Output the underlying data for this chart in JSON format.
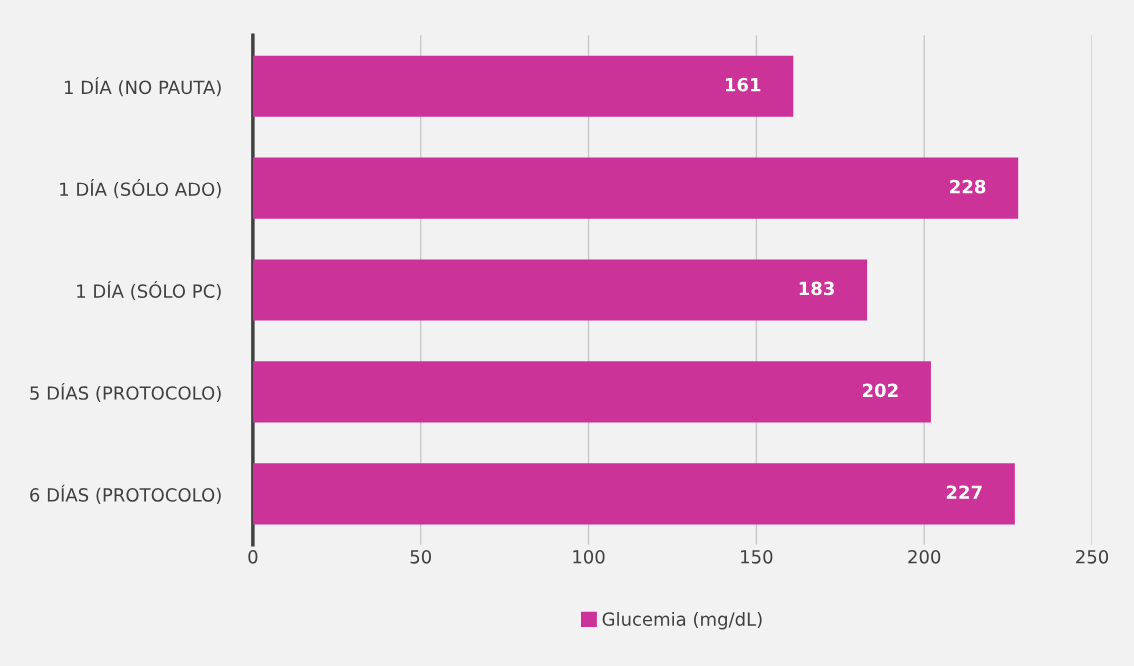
{
  "chart_data": {
    "type": "bar",
    "orientation": "horizontal",
    "categories": [
      "1 DÍA (NO PAUTA)",
      "1 DÍA (SÓLO ADO)",
      "1 DÍA (SÓLO PC)",
      "5 DÍAS (PROTOCOLO)",
      "6 DÍAS (PROTOCOLO)"
    ],
    "series": [
      {
        "name": "Glucemia (mg/dL)",
        "color": "#cc3399",
        "values": [
          161,
          228,
          183,
          202,
          227
        ]
      }
    ],
    "xlim": [
      0,
      250
    ],
    "xticks": [
      0,
      50,
      100,
      150,
      200,
      250
    ],
    "grid": "x",
    "legend": "bottom",
    "data_labels": true
  }
}
